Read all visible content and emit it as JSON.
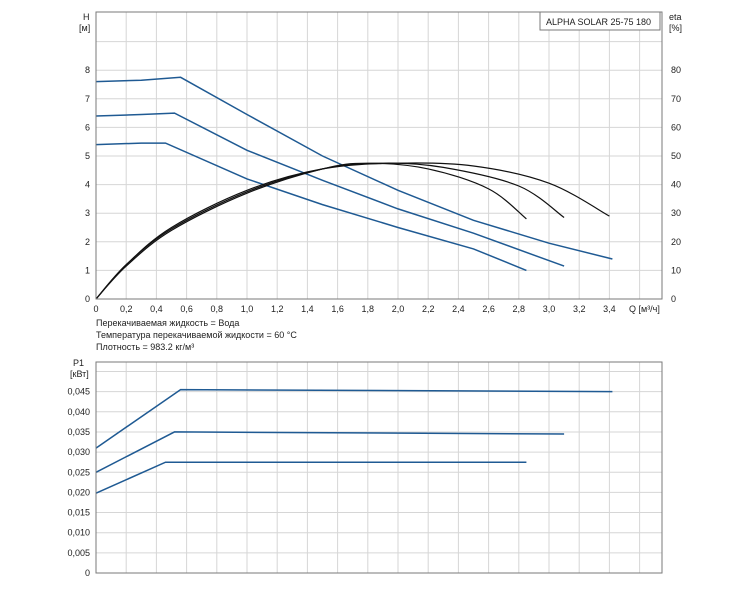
{
  "chart_data": [
    {
      "type": "line",
      "title": "ALPHA SOLAR 25-75  180",
      "xlabel": "Q [м³/ч]",
      "ylabel": "H\n[м]",
      "ylabel_right": "eta\n[%]",
      "xlim": [
        0,
        3.6
      ],
      "ylim": [
        0,
        8
      ],
      "ylim_right": [
        0,
        80
      ],
      "x_ticks": [
        "0",
        "0,2",
        "0,4",
        "0,6",
        "0,8",
        "1,0",
        "1,2",
        "1,4",
        "1,6",
        "1,8",
        "2,0",
        "2,2",
        "2,4",
        "2,6",
        "2,8",
        "3,0",
        "3,2",
        "3,4"
      ],
      "y_ticks": [
        "0",
        "1",
        "2",
        "3",
        "4",
        "5",
        "6",
        "7",
        "8"
      ],
      "y_right_ticks": [
        "0",
        "10",
        "20",
        "30",
        "40",
        "50",
        "60",
        "70",
        "80"
      ],
      "grid": true,
      "series": [
        {
          "group": "H",
          "x": [
            0,
            0.3,
            0.56,
            1.0,
            1.5,
            2.0,
            2.5,
            3.0,
            3.42
          ],
          "y": [
            7.6,
            7.65,
            7.75,
            6.45,
            5.0,
            3.8,
            2.75,
            1.95,
            1.4
          ]
        },
        {
          "group": "H",
          "x": [
            0,
            0.3,
            0.52,
            1.0,
            1.5,
            2.0,
            2.5,
            3.1
          ],
          "y": [
            6.4,
            6.45,
            6.5,
            5.2,
            4.15,
            3.15,
            2.3,
            1.15
          ]
        },
        {
          "group": "H",
          "x": [
            0,
            0.3,
            0.46,
            1.0,
            1.5,
            2.0,
            2.5,
            2.85
          ],
          "y": [
            5.4,
            5.45,
            5.45,
            4.2,
            3.3,
            2.5,
            1.75,
            1.0
          ]
        },
        {
          "group": "eta",
          "x": [
            0,
            0.2,
            0.5,
            1.0,
            1.5,
            2.0,
            2.5,
            3.0,
            3.4
          ],
          "y": [
            0,
            12,
            25,
            38,
            45.5,
            47.5,
            46.5,
            40.5,
            29
          ]
        },
        {
          "group": "eta",
          "x": [
            0,
            0.2,
            0.5,
            1.0,
            1.5,
            1.9,
            2.3,
            2.8,
            3.1
          ],
          "y": [
            0,
            12,
            24.5,
            37.5,
            45.5,
            47.5,
            46,
            39.5,
            28.5
          ]
        },
        {
          "group": "eta",
          "x": [
            0,
            0.2,
            0.5,
            1.0,
            1.5,
            1.8,
            2.2,
            2.6,
            2.85
          ],
          "y": [
            0,
            11.5,
            24,
            37,
            45.5,
            47.5,
            45.5,
            38.5,
            28
          ]
        }
      ],
      "notes": [
        "Перекачиваемая жидкость = Вода",
        "Температура перекачиваемой жидкости = 60 °C",
        "Плотность = 983.2 кг/м³"
      ]
    },
    {
      "type": "line",
      "ylabel": "P1\n[кВт]",
      "xlim": [
        0,
        3.6
      ],
      "ylim": [
        0,
        0.05
      ],
      "y_ticks": [
        "0",
        "0,005",
        "0,010",
        "0,015",
        "0,020",
        "0,025",
        "0,030",
        "0,035",
        "0,040",
        "0,045"
      ],
      "grid": true,
      "series": [
        {
          "x": [
            0,
            0.56,
            3.42
          ],
          "y": [
            0.031,
            0.0455,
            0.045
          ]
        },
        {
          "x": [
            0,
            0.52,
            3.1
          ],
          "y": [
            0.025,
            0.035,
            0.0345
          ]
        },
        {
          "x": [
            0,
            0.46,
            2.85
          ],
          "y": [
            0.0198,
            0.0275,
            0.0275
          ]
        }
      ]
    }
  ]
}
